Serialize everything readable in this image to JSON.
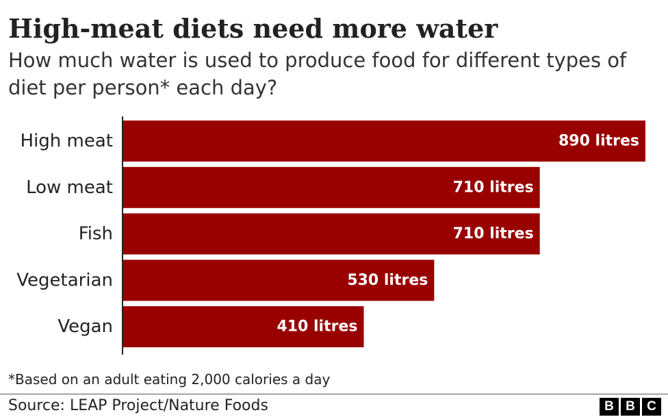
{
  "title": "High-meat diets need more water",
  "subtitle": "How much water is used to produce food for different types of diet per person* each day?",
  "note": "*Based on an adult eating 2,000 calories a day",
  "source": "Source: LEAP Project/Nature Foods",
  "logo": [
    "B",
    "B",
    "C"
  ],
  "colors": {
    "bar": "#990000",
    "bar_label": "#ffffff",
    "axis": "#222222",
    "text": "#222222"
  },
  "chart_data": {
    "type": "bar",
    "orientation": "horizontal",
    "title": "High-meat diets need more water",
    "subtitle": "How much water is used to produce food for different types of diet per person* each day?",
    "categories": [
      "High meat",
      "Low meat",
      "Fish",
      "Vegetarian",
      "Vegan"
    ],
    "values": [
      890,
      710,
      710,
      530,
      410
    ],
    "value_labels": [
      "890 litres",
      "710 litres",
      "710 litres",
      "530 litres",
      "410 litres"
    ],
    "xlabel": "",
    "ylabel": "",
    "xlim": [
      0,
      890
    ],
    "grid": false,
    "legend": "none"
  }
}
